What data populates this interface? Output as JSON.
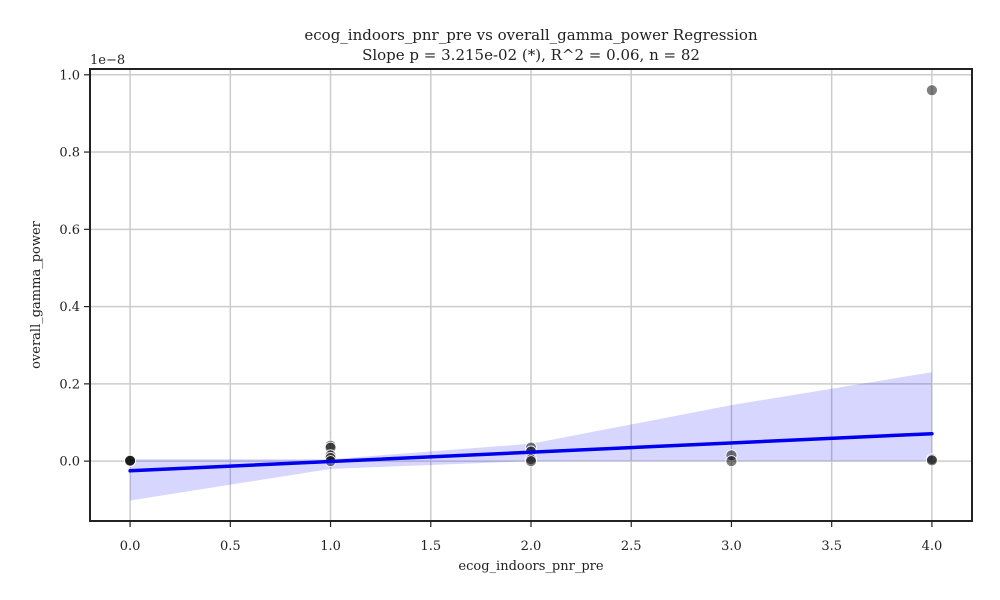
{
  "chart_data": {
    "type": "scatter",
    "title": "ecog_indoors_pnr_pre vs overall_gamma_power Regression",
    "subtitle": "Slope p = 3.215e-02 (*), R^2 = 0.06, n = 82",
    "xlabel": "ecog_indoors_pnr_pre",
    "ylabel": "overall_gamma_power",
    "y_offset_text": "1e−8",
    "xlim": [
      -0.2,
      4.2
    ],
    "ylim": [
      -0.155,
      1.015
    ],
    "grid": true,
    "x_ticks": [
      0.0,
      0.5,
      1.0,
      1.5,
      2.0,
      2.5,
      3.0,
      3.5,
      4.0
    ],
    "x_tick_labels": [
      "0.0",
      "0.5",
      "1.0",
      "1.5",
      "2.0",
      "2.5",
      "3.0",
      "3.5",
      "4.0"
    ],
    "y_ticks": [
      0.0,
      0.2,
      0.4,
      0.6,
      0.8,
      1.0
    ],
    "y_tick_labels": [
      "0.0",
      "0.2",
      "0.4",
      "0.6",
      "0.8",
      "1.0"
    ],
    "points": [
      {
        "x": 0,
        "y": 0.0
      },
      {
        "x": 0,
        "y": 0.002
      },
      {
        "x": 0,
        "y": 0.001
      },
      {
        "x": 1,
        "y": 0.04
      },
      {
        "x": 1,
        "y": 0.035
      },
      {
        "x": 1,
        "y": 0.015
      },
      {
        "x": 1,
        "y": 0.008
      },
      {
        "x": 1,
        "y": 0.0
      },
      {
        "x": 2,
        "y": 0.035
      },
      {
        "x": 2,
        "y": 0.025
      },
      {
        "x": 2,
        "y": 0.005
      },
      {
        "x": 2,
        "y": 0.0
      },
      {
        "x": 3,
        "y": 0.015
      },
      {
        "x": 3,
        "y": 0.0
      },
      {
        "x": 4,
        "y": 0.96
      },
      {
        "x": 4,
        "y": 0.005
      },
      {
        "x": 4,
        "y": 0.002
      }
    ],
    "regression_line": {
      "x": [
        0,
        4
      ],
      "y": [
        -0.025,
        0.071
      ]
    },
    "confidence_band": {
      "x": [
        0,
        1,
        2,
        3,
        4
      ],
      "upper": [
        0.005,
        0.005,
        0.045,
        0.145,
        0.23
      ],
      "lower": [
        -0.102,
        -0.02,
        0.0,
        0.0,
        0.0
      ]
    },
    "colors": {
      "points": "#000000",
      "regression_line": "#0000ee",
      "confidence_band": "#0000ff",
      "grid": "#cccccc",
      "axes": "#222222"
    }
  }
}
